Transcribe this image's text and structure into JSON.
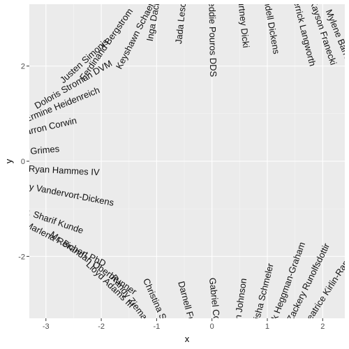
{
  "chart_data": {
    "type": "scatter",
    "xlabel": "x",
    "ylabel": "y",
    "xlim": [
      -3.3,
      2.4
    ],
    "ylim": [
      -3.3,
      3.3
    ],
    "x_ticks": [
      -3,
      -2,
      -1,
      0,
      1,
      2
    ],
    "y_ticks": [
      -2,
      0,
      2
    ],
    "x_tick_labels": [
      "-3",
      "-2",
      "-1",
      "0",
      "1",
      "2"
    ],
    "y_tick_labels": [
      "-2",
      "0",
      "2"
    ],
    "grid": true,
    "background_color": "#ebebeb",
    "labels": [
      {
        "text": "Kayson Franecki",
        "x": 2.0,
        "y": 2.7,
        "angle": 72
      },
      {
        "text": "Mylene Barrows-Jast",
        "x": 2.38,
        "y": 2.35,
        "angle": 68
      },
      {
        "text": "Derrick Langworth",
        "x": 1.65,
        "y": 2.75,
        "angle": 76
      },
      {
        "text": "Wendell Dickens",
        "x": 1.05,
        "y": 2.95,
        "angle": 80
      },
      {
        "text": "Courtney Dicki",
        "x": 0.55,
        "y": 3.0,
        "angle": 84
      },
      {
        "text": "Freddie Pouros DDS",
        "x": 0.0,
        "y": 2.65,
        "angle": 89
      },
      {
        "text": "Jada Lesch",
        "x": -0.55,
        "y": 2.95,
        "angle": -84
      },
      {
        "text": "Inga Dach",
        "x": -1.05,
        "y": 2.95,
        "angle": -80
      },
      {
        "text": "Keyshawn Schaefer",
        "x": -1.35,
        "y": 2.7,
        "angle": -63
      },
      {
        "text": "Ferdinand Bergstrom",
        "x": -1.9,
        "y": 2.45,
        "angle": -55
      },
      {
        "text": "Justen Simonis",
        "x": -2.3,
        "y": 2.1,
        "angle": -42
      },
      {
        "text": "Doloris Stroman DVM",
        "x": -2.5,
        "y": 1.6,
        "angle": -30
      },
      {
        "text": "Ermine Heidenreich",
        "x": -2.7,
        "y": 1.18,
        "angle": -22
      },
      {
        "text": "Sharron Corwin",
        "x": -3.0,
        "y": 0.7,
        "angle": -13
      },
      {
        "text": "Aidan Grimes",
        "x": -3.25,
        "y": 0.2,
        "angle": -5
      },
      {
        "text": "Dr. Ryan Hammes IV",
        "x": -2.8,
        "y": -0.2,
        "angle": 3
      },
      {
        "text": "Kolby Vandervort-Dickens",
        "x": -2.7,
        "y": -0.68,
        "angle": 11
      },
      {
        "text": "Dr. Sharif Kunde",
        "x": -2.9,
        "y": -1.25,
        "angle": 19
      },
      {
        "text": "Marlena Reichert PhD",
        "x": -2.65,
        "y": -1.75,
        "angle": 27
      },
      {
        "text": "Mr. Brandan Oberbrunner",
        "x": -2.15,
        "y": -2.15,
        "angle": 35
      },
      {
        "text": "Lloyd Adams III",
        "x": -1.85,
        "y": -2.6,
        "angle": 44
      },
      {
        "text": "Randy Ziemann",
        "x": -1.45,
        "y": -2.95,
        "angle": 53
      },
      {
        "text": "Christina Sanford",
        "x": -0.95,
        "y": -3.15,
        "angle": 66
      },
      {
        "text": "Darnell Funk",
        "x": -0.45,
        "y": -3.05,
        "angle": 75
      },
      {
        "text": "Gabriel Collier",
        "x": 0.05,
        "y": -3.05,
        "angle": 84
      },
      {
        "text": "Marilyn Johnson",
        "x": 0.5,
        "y": -3.15,
        "angle": -82
      },
      {
        "text": "Keisha Schmeler",
        "x": 0.92,
        "y": -2.85,
        "angle": -76
      },
      {
        "text": "Nick Heggman-Graham",
        "x": 1.35,
        "y": -2.65,
        "angle": -70
      },
      {
        "text": "Zackery Runolfsdottir",
        "x": 1.75,
        "y": -2.55,
        "angle": -64
      },
      {
        "text": "Beatrice Kirlin-Rand Pedroc",
        "x": 2.25,
        "y": -2.45,
        "angle": -57
      }
    ]
  }
}
